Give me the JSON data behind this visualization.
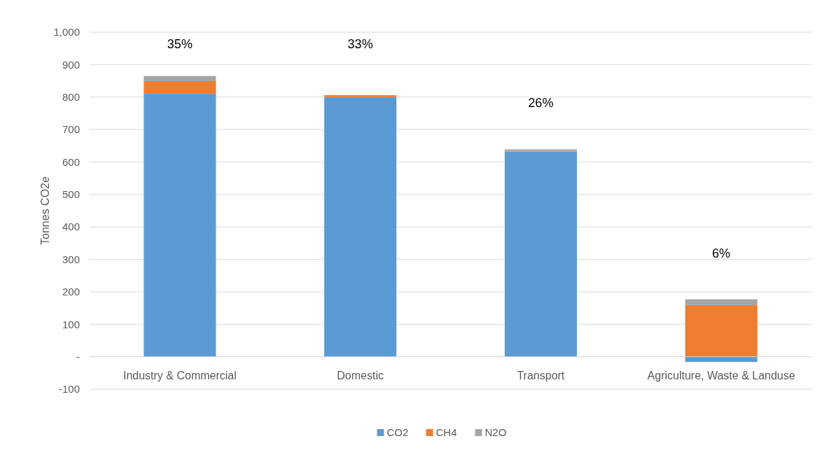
{
  "chart_data": {
    "type": "bar",
    "stacked": true,
    "ylabel": "Tonnes CO2e",
    "categories": [
      "Industry & Commercial",
      "Domestic",
      "Transport",
      "Agriculture, Waste & Landuse"
    ],
    "series": [
      {
        "name": "CO2",
        "color": "#5b9bd5",
        "values": [
          810,
          800,
          632,
          -16
        ]
      },
      {
        "name": "CH4",
        "color": "#ed7d31",
        "values": [
          39,
          6,
          2,
          159
        ]
      },
      {
        "name": "N2O",
        "color": "#a5a5a5",
        "values": [
          16,
          null,
          5,
          18
        ]
      }
    ],
    "annotations": [
      "35%",
      "33%",
      "26%",
      "6%"
    ],
    "ylim": [
      -100,
      1000
    ],
    "yticks": [
      {
        "value": -100,
        "label": "-100"
      },
      {
        "value": 0,
        "label": "-"
      },
      {
        "value": 100,
        "label": "100"
      },
      {
        "value": 200,
        "label": "200"
      },
      {
        "value": 300,
        "label": "300"
      },
      {
        "value": 400,
        "label": "400"
      },
      {
        "value": 500,
        "label": "500"
      },
      {
        "value": 600,
        "label": "600"
      },
      {
        "value": 700,
        "label": "700"
      },
      {
        "value": 800,
        "label": "800"
      },
      {
        "value": 900,
        "label": "900"
      },
      {
        "value": 1000,
        "label": "1,000"
      }
    ],
    "grid": "y",
    "legend": "bottom"
  }
}
